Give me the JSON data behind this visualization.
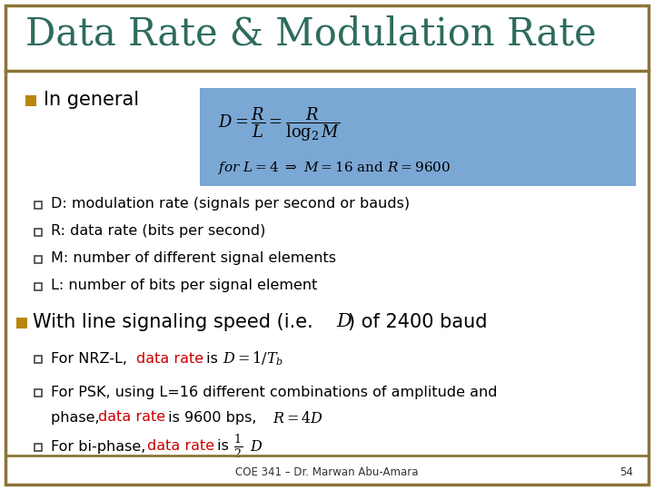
{
  "title": "Data Rate & Modulation Rate",
  "title_color": "#2E6B5E",
  "title_fontsize": 30,
  "bg_color": "#FFFFFF",
  "border_color": "#8B7536",
  "bullet1_text": "In general",
  "formula_box_color": "#7BA7D4",
  "bullet1_subitems": [
    "D: modulation rate (signals per second or bauds)",
    "R: data rate (bits per second)",
    "M: number of different signal elements",
    "L: number of bits per signal element"
  ],
  "footer_text": "COE 341 – Dr. Marwan Abu-Amara",
  "footer_page": "54",
  "text_color": "#000000",
  "red_color": "#CC0000",
  "gold_bullet_color": "#B8860B",
  "small_bullet_color": "#444444"
}
